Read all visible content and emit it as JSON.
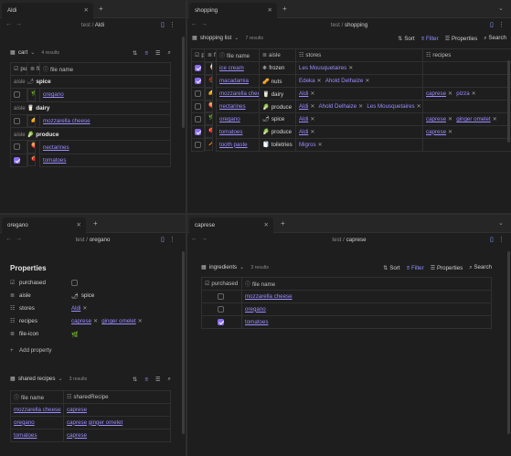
{
  "pane_aldi": {
    "tab_title": "Aldi",
    "breadcrumb_folder": "test",
    "breadcrumb_file": "Aldi",
    "view_name": "cart",
    "result_count": "4 results",
    "columns": [
      "pu",
      "file",
      "file name"
    ],
    "groups": [
      {
        "prefix": "aisle",
        "icon": "🌶",
        "name": "spice",
        "rows": [
          {
            "checked": false,
            "icon": "🌿",
            "name": "oregano"
          }
        ]
      },
      {
        "prefix": "aisle",
        "icon": "🥛",
        "name": "dairy",
        "rows": [
          {
            "checked": false,
            "icon": "🧀",
            "name": "mozzarella cheese"
          }
        ]
      },
      {
        "prefix": "aisle",
        "icon": "🥬",
        "name": "produce",
        "rows": [
          {
            "checked": false,
            "icon": "🍑",
            "name": "nectarines"
          },
          {
            "checked": true,
            "icon": "🍅",
            "name": "tomatoes"
          }
        ]
      }
    ]
  },
  "pane_shopping": {
    "tab_title": "shopping",
    "breadcrumb_folder": "test",
    "breadcrumb_file": "shopping",
    "view_name": "shopping list",
    "result_count": "7 results",
    "toolbar": {
      "sort": "Sort",
      "filter": "Filter",
      "properties": "Properties",
      "search": "Search"
    },
    "columns": [
      "pu",
      "file",
      "file name",
      "aisle",
      "stores",
      "recipes"
    ],
    "rows": [
      {
        "checked": true,
        "icon": "🍦",
        "name": "ice cream",
        "aisle_icon": "❄",
        "aisle": "frozen",
        "stores": [
          {
            "t": "Les Mousquetaires",
            "link": false
          }
        ],
        "recipes": []
      },
      {
        "checked": true,
        "icon": "🌰",
        "name": "macadamia",
        "aisle_icon": "🥜",
        "aisle": "nuts",
        "stores": [
          {
            "t": "Edeka",
            "link": false
          },
          {
            "t": "Ahold Delhaize",
            "link": false
          }
        ],
        "recipes": []
      },
      {
        "checked": false,
        "icon": "🧀",
        "name": "mozzarella cheese",
        "aisle_icon": "🥛",
        "aisle": "dairy",
        "stores": [
          {
            "t": "Aldi",
            "link": true
          }
        ],
        "recipes": [
          {
            "t": "caprese",
            "link": true
          },
          {
            "t": "pizza",
            "link": false
          }
        ]
      },
      {
        "checked": false,
        "icon": "🍑",
        "name": "nectarines",
        "aisle_icon": "🥬",
        "aisle": "produce",
        "stores": [
          {
            "t": "Aldi",
            "link": true
          },
          {
            "t": "Ahold Delhaize",
            "link": false
          },
          {
            "t": "Les Mousquetaires",
            "link": false
          }
        ],
        "recipes": []
      },
      {
        "checked": false,
        "icon": "🌿",
        "name": "oregano",
        "aisle_icon": "🌶",
        "aisle": "spice",
        "stores": [
          {
            "t": "Aldi",
            "link": true
          }
        ],
        "recipes": [
          {
            "t": "caprese",
            "link": true
          },
          {
            "t": "ginger omelet",
            "link": true
          }
        ]
      },
      {
        "checked": true,
        "icon": "🍅",
        "name": "tomatoes",
        "aisle_icon": "🥬",
        "aisle": "produce",
        "stores": [
          {
            "t": "Aldi",
            "link": true
          }
        ],
        "recipes": [
          {
            "t": "caprese",
            "link": true
          }
        ]
      },
      {
        "checked": false,
        "icon": "🪥",
        "name": "tooth paste",
        "aisle_icon": "🧻",
        "aisle": "toiletries",
        "stores": [
          {
            "t": "Migros",
            "link": false
          }
        ],
        "recipes": []
      }
    ]
  },
  "pane_oregano": {
    "tab_title": "oregano",
    "breadcrumb_folder": "test",
    "breadcrumb_file": "oregano",
    "properties_heading": "Properties",
    "props": {
      "purchased_label": "purchased",
      "aisle_label": "aisle",
      "aisle_icon": "🌶",
      "aisle_value": "spice",
      "stores_label": "stores",
      "stores_value": "Aldi",
      "recipes_label": "recipes",
      "recipe1": "caprese",
      "recipe2": "ginger omelet",
      "fileicon_label": "file-icon",
      "fileicon_value": "🌿",
      "add_label": "Add property"
    },
    "base_name": "shared recipes",
    "base_count": "3 results",
    "columns": [
      "file name",
      "sharedRecipe"
    ],
    "rows": [
      {
        "name": "mozzarella cheese",
        "recipes": [
          "caprese"
        ]
      },
      {
        "name": "oregano",
        "recipes": [
          "caprese",
          "ginger omelet"
        ]
      },
      {
        "name": "tomatoes",
        "recipes": [
          "caprese"
        ]
      }
    ]
  },
  "pane_caprese": {
    "tab_title": "caprese",
    "breadcrumb_folder": "test",
    "breadcrumb_file": "caprese",
    "view_name": "ingredients",
    "result_count": "3 results",
    "toolbar": {
      "sort": "Sort",
      "filter": "Filter",
      "properties": "Properties",
      "search": "Search"
    },
    "columns": [
      "purchased",
      "file name"
    ],
    "rows": [
      {
        "checked": false,
        "name": "mozzarella cheese"
      },
      {
        "checked": false,
        "name": "oregano"
      },
      {
        "checked": true,
        "name": "tomatoes"
      }
    ]
  },
  "colors": {
    "accent": "#8a6cf0",
    "link": "#9a8cff",
    "bg": "#1e1e1e"
  }
}
